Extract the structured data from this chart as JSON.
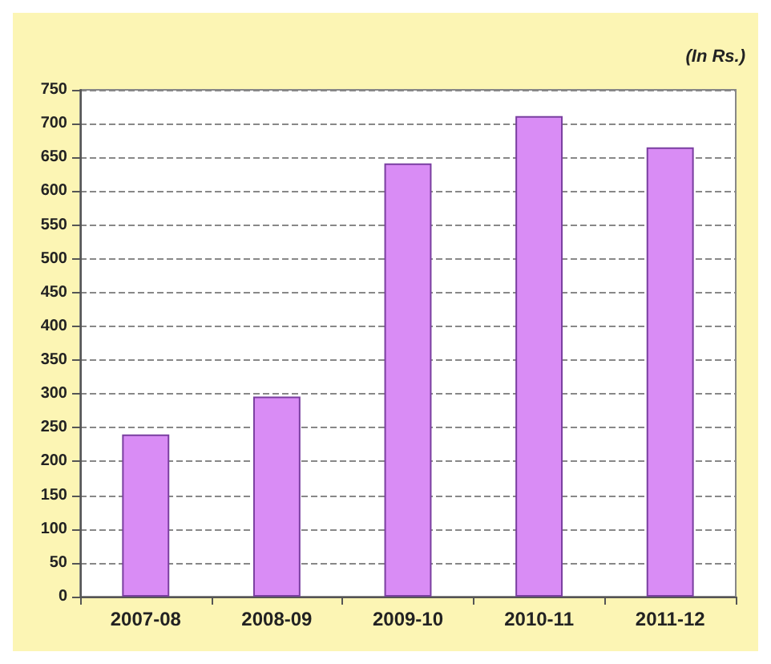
{
  "chart_data": {
    "type": "bar",
    "ylabel": "(In Rs.)",
    "categories": [
      "2007-08",
      "2008-09",
      "2009-10",
      "2010-11",
      "2011-12"
    ],
    "values": [
      240,
      296,
      641,
      711,
      665
    ],
    "color": "#d98cf5",
    "ylim": [
      0,
      750
    ],
    "yticks": [
      0,
      50,
      100,
      150,
      200,
      250,
      300,
      350,
      400,
      450,
      500,
      550,
      600,
      650,
      700,
      750
    ],
    "grid": "y"
  }
}
